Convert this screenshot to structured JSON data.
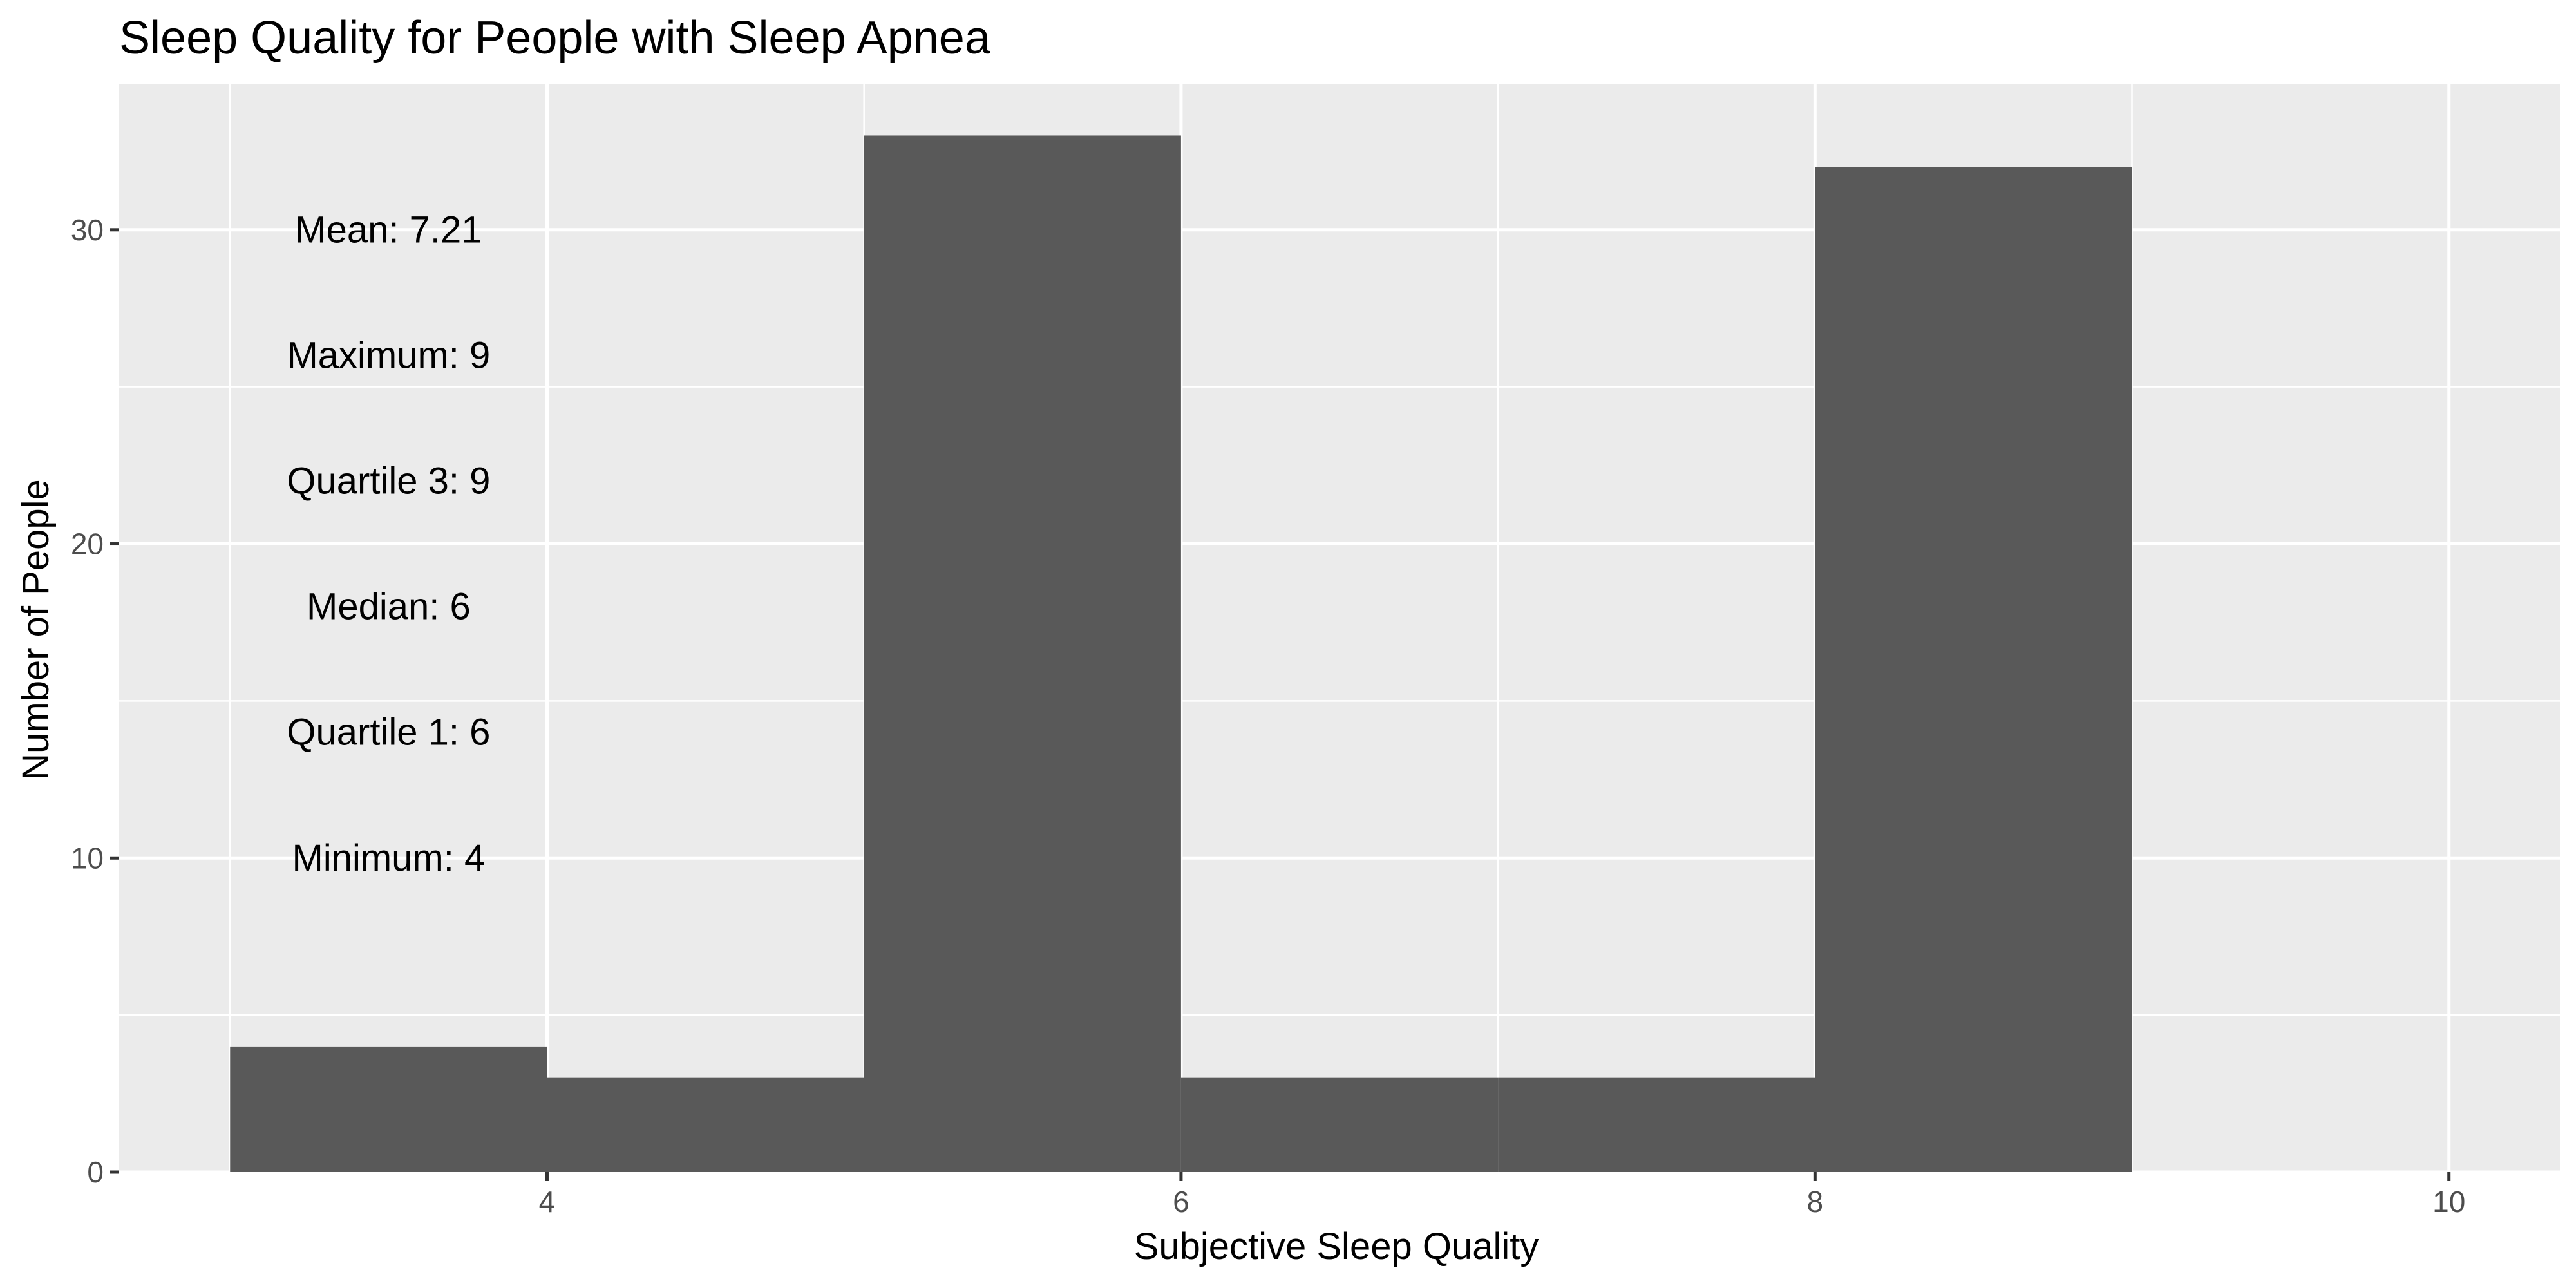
{
  "chart_data": {
    "type": "bar",
    "title": "Sleep Quality for People with Sleep Apnea",
    "xlabel": "Subjective Sleep Quality",
    "ylabel": "Number of People",
    "xlim": [
      2.65,
      10.35
    ],
    "ylim": [
      0,
      34.65
    ],
    "x_ticks": [
      4,
      6,
      8,
      10
    ],
    "y_ticks": [
      0,
      10,
      20,
      30
    ],
    "grid": true,
    "bin_width": 1,
    "bins": [
      {
        "x0": 3,
        "x1": 4,
        "value": 4
      },
      {
        "x0": 4,
        "x1": 5,
        "value": 3
      },
      {
        "x0": 5,
        "x1": 6,
        "value": 33
      },
      {
        "x0": 6,
        "x1": 7,
        "value": 3
      },
      {
        "x0": 7,
        "x1": 8,
        "value": 3
      },
      {
        "x0": 8,
        "x1": 9,
        "value": 32
      }
    ],
    "bar_color": "#595959",
    "panel_color": "#ebebeb",
    "annotations": [
      {
        "text": "Mean: 7.21",
        "x": 3.5,
        "y": 30
      },
      {
        "text": "Maximum: 9",
        "x": 3.5,
        "y": 26
      },
      {
        "text": "Quartile 3: 9",
        "x": 3.5,
        "y": 22
      },
      {
        "text": "Median: 6",
        "x": 3.5,
        "y": 18
      },
      {
        "text": "Quartile 1: 6",
        "x": 3.5,
        "y": 14
      },
      {
        "text": "Minimum: 4",
        "x": 3.5,
        "y": 10
      }
    ]
  }
}
